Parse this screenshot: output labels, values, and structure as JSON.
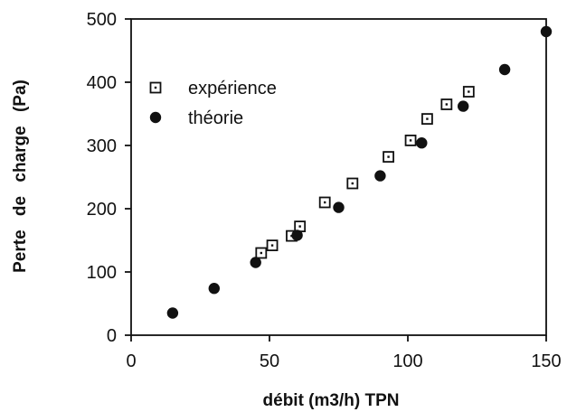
{
  "chart_data": {
    "type": "scatter",
    "xlabel": "débit (m3/h) TPN",
    "ylabel": "Perte de charge (Pa)",
    "xlim": [
      0,
      150
    ],
    "ylim": [
      0,
      500
    ],
    "xticks": [
      0,
      50,
      100,
      150
    ],
    "yticks": [
      0,
      100,
      200,
      300,
      400,
      500
    ],
    "grid": false,
    "legend_position": "top-left",
    "series": [
      {
        "name": "expérience",
        "marker": "hollow-square",
        "color": "#111111",
        "x": [
          47,
          51,
          58,
          61,
          70,
          80,
          93,
          101,
          107,
          114,
          122
        ],
        "y": [
          130,
          142,
          157,
          172,
          210,
          240,
          282,
          308,
          342,
          365,
          385
        ]
      },
      {
        "name": "théorie",
        "marker": "filled-circle",
        "color": "#111111",
        "x": [
          15,
          30,
          45,
          60,
          75,
          90,
          105,
          120,
          135,
          150
        ],
        "y": [
          35,
          74,
          115,
          158,
          202,
          252,
          304,
          362,
          420,
          480
        ]
      }
    ]
  }
}
